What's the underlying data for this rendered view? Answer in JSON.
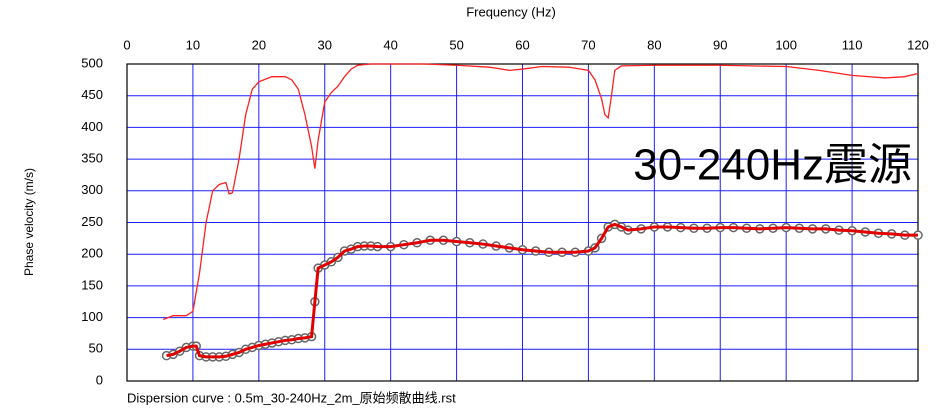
{
  "chart_data": {
    "type": "line",
    "x_label": "Frequency (Hz)",
    "y_label": "Phase velocity (m/s)",
    "annotation": "30-240Hz震源",
    "caption": "Dispersion curve : 0.5m_30-240Hz_2m_原始频散曲线.rst",
    "xlim": [
      0,
      120
    ],
    "ylim": [
      0,
      500
    ],
    "xticks": [
      0,
      10,
      20,
      30,
      40,
      50,
      60,
      70,
      80,
      90,
      100,
      110,
      120
    ],
    "yticks": [
      0,
      50,
      100,
      150,
      200,
      250,
      300,
      350,
      400,
      450,
      500
    ],
    "grid": true,
    "grid_color": "#1f1fff",
    "series": [
      {
        "color": "#ff2020",
        "markers": false,
        "x": [
          5.5,
          7,
          9,
          10,
          11,
          12,
          13,
          14,
          15,
          15.5,
          16,
          17,
          18,
          19,
          20,
          22,
          24,
          25,
          26,
          27,
          28,
          28.5,
          29,
          30,
          31,
          32,
          33,
          34,
          35,
          37,
          40,
          45,
          50,
          55,
          58,
          60,
          63,
          67,
          70,
          71,
          72,
          72.5,
          73,
          73.5,
          74,
          75,
          80,
          90,
          100,
          105,
          110,
          115,
          118,
          120
        ],
        "values": [
          97,
          103,
          103,
          110,
          170,
          250,
          300,
          310,
          313,
          295,
          297,
          350,
          420,
          460,
          472,
          480,
          480,
          475,
          460,
          420,
          370,
          335,
          380,
          440,
          455,
          465,
          480,
          492,
          498,
          500,
          500,
          500,
          498,
          495,
          490,
          492,
          496,
          495,
          490,
          475,
          445,
          420,
          415,
          450,
          490,
          497,
          498,
          498,
          496,
          490,
          482,
          478,
          480,
          485
        ]
      },
      {
        "color": "#e00000",
        "markers": true,
        "marker_color": "#666666",
        "x": [
          6,
          7,
          8,
          9,
          10,
          10.5,
          11,
          12,
          13,
          14,
          15,
          16,
          17,
          18,
          19,
          20,
          21,
          22,
          23,
          24,
          25,
          26,
          27,
          28,
          28.5,
          29,
          30,
          31,
          32,
          33,
          34,
          35,
          36,
          37,
          38,
          40,
          42,
          44,
          46,
          48,
          50,
          52,
          54,
          56,
          58,
          60,
          62,
          64,
          66,
          68,
          70,
          71,
          72,
          73,
          74,
          75,
          76,
          78,
          80,
          82,
          84,
          86,
          88,
          90,
          92,
          94,
          96,
          98,
          100,
          102,
          104,
          106,
          108,
          110,
          112,
          114,
          116,
          118,
          120
        ],
        "values": [
          40,
          42,
          47,
          53,
          55,
          55,
          40,
          38,
          38,
          38,
          39,
          42,
          45,
          50,
          53,
          56,
          58,
          60,
          62,
          64,
          65,
          67,
          68,
          70,
          125,
          178,
          183,
          188,
          195,
          205,
          208,
          212,
          213,
          213,
          212,
          212,
          215,
          218,
          222,
          222,
          220,
          218,
          216,
          213,
          210,
          207,
          205,
          203,
          203,
          203,
          205,
          210,
          225,
          243,
          247,
          243,
          238,
          240,
          243,
          243,
          242,
          241,
          241,
          242,
          242,
          241,
          240,
          241,
          242,
          241,
          240,
          240,
          238,
          237,
          235,
          233,
          232,
          230,
          230
        ]
      }
    ]
  }
}
